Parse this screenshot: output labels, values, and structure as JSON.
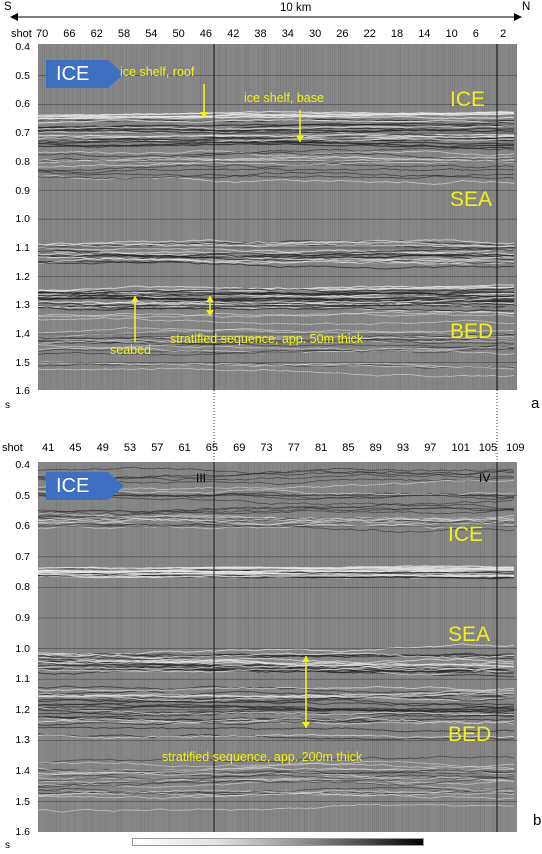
{
  "top_axis": {
    "left_label": "S",
    "right_label": "N",
    "scale_label": "10 km"
  },
  "panel_a": {
    "shot_prefix": "shot",
    "shots": [
      "70",
      "66",
      "62",
      "58",
      "54",
      "50",
      "46",
      "42",
      "38",
      "34",
      "30",
      "26",
      "22",
      "18",
      "14",
      "10",
      "6",
      "2"
    ],
    "y_ticks": [
      "0.4",
      "0.5",
      "0.6",
      "0.7",
      "0.8",
      "0.9",
      "1.0",
      "1.1",
      "1.2",
      "1.3",
      "1.4",
      "1.5",
      "1.6"
    ],
    "y_unit": "s",
    "panel_letter": "a",
    "badge": "ICE",
    "annotations": {
      "roof": "ice shelf, roof",
      "base": "ice shelf, base",
      "seabed": "seabed",
      "stratified": "stratified sequence, app. 50m thick"
    },
    "layers": [
      "ICE",
      "SEA",
      "BED"
    ]
  },
  "panel_b": {
    "shot_prefix": "shot",
    "shots": [
      "41",
      "45",
      "49",
      "53",
      "57",
      "61",
      "65",
      "69",
      "73",
      "77",
      "81",
      "85",
      "89",
      "93",
      "97",
      "101",
      "105",
      "109"
    ],
    "y_ticks": [
      "0.4",
      "0.5",
      "0.6",
      "0.7",
      "0.8",
      "0.9",
      "1.0",
      "1.1",
      "1.2",
      "1.3",
      "1.4",
      "1.5",
      "1.6"
    ],
    "y_unit": "s",
    "panel_letter": "b",
    "badge": "ICE",
    "markers": [
      "III",
      "IV"
    ],
    "annotations": {
      "stratified": "stratified sequence, app. 200m thick"
    },
    "layers": [
      "ICE",
      "SEA",
      "BED"
    ]
  },
  "colors": {
    "annotation": "#f2f21a",
    "badge": "#3f6fc0",
    "seismic_background": "#878787"
  }
}
